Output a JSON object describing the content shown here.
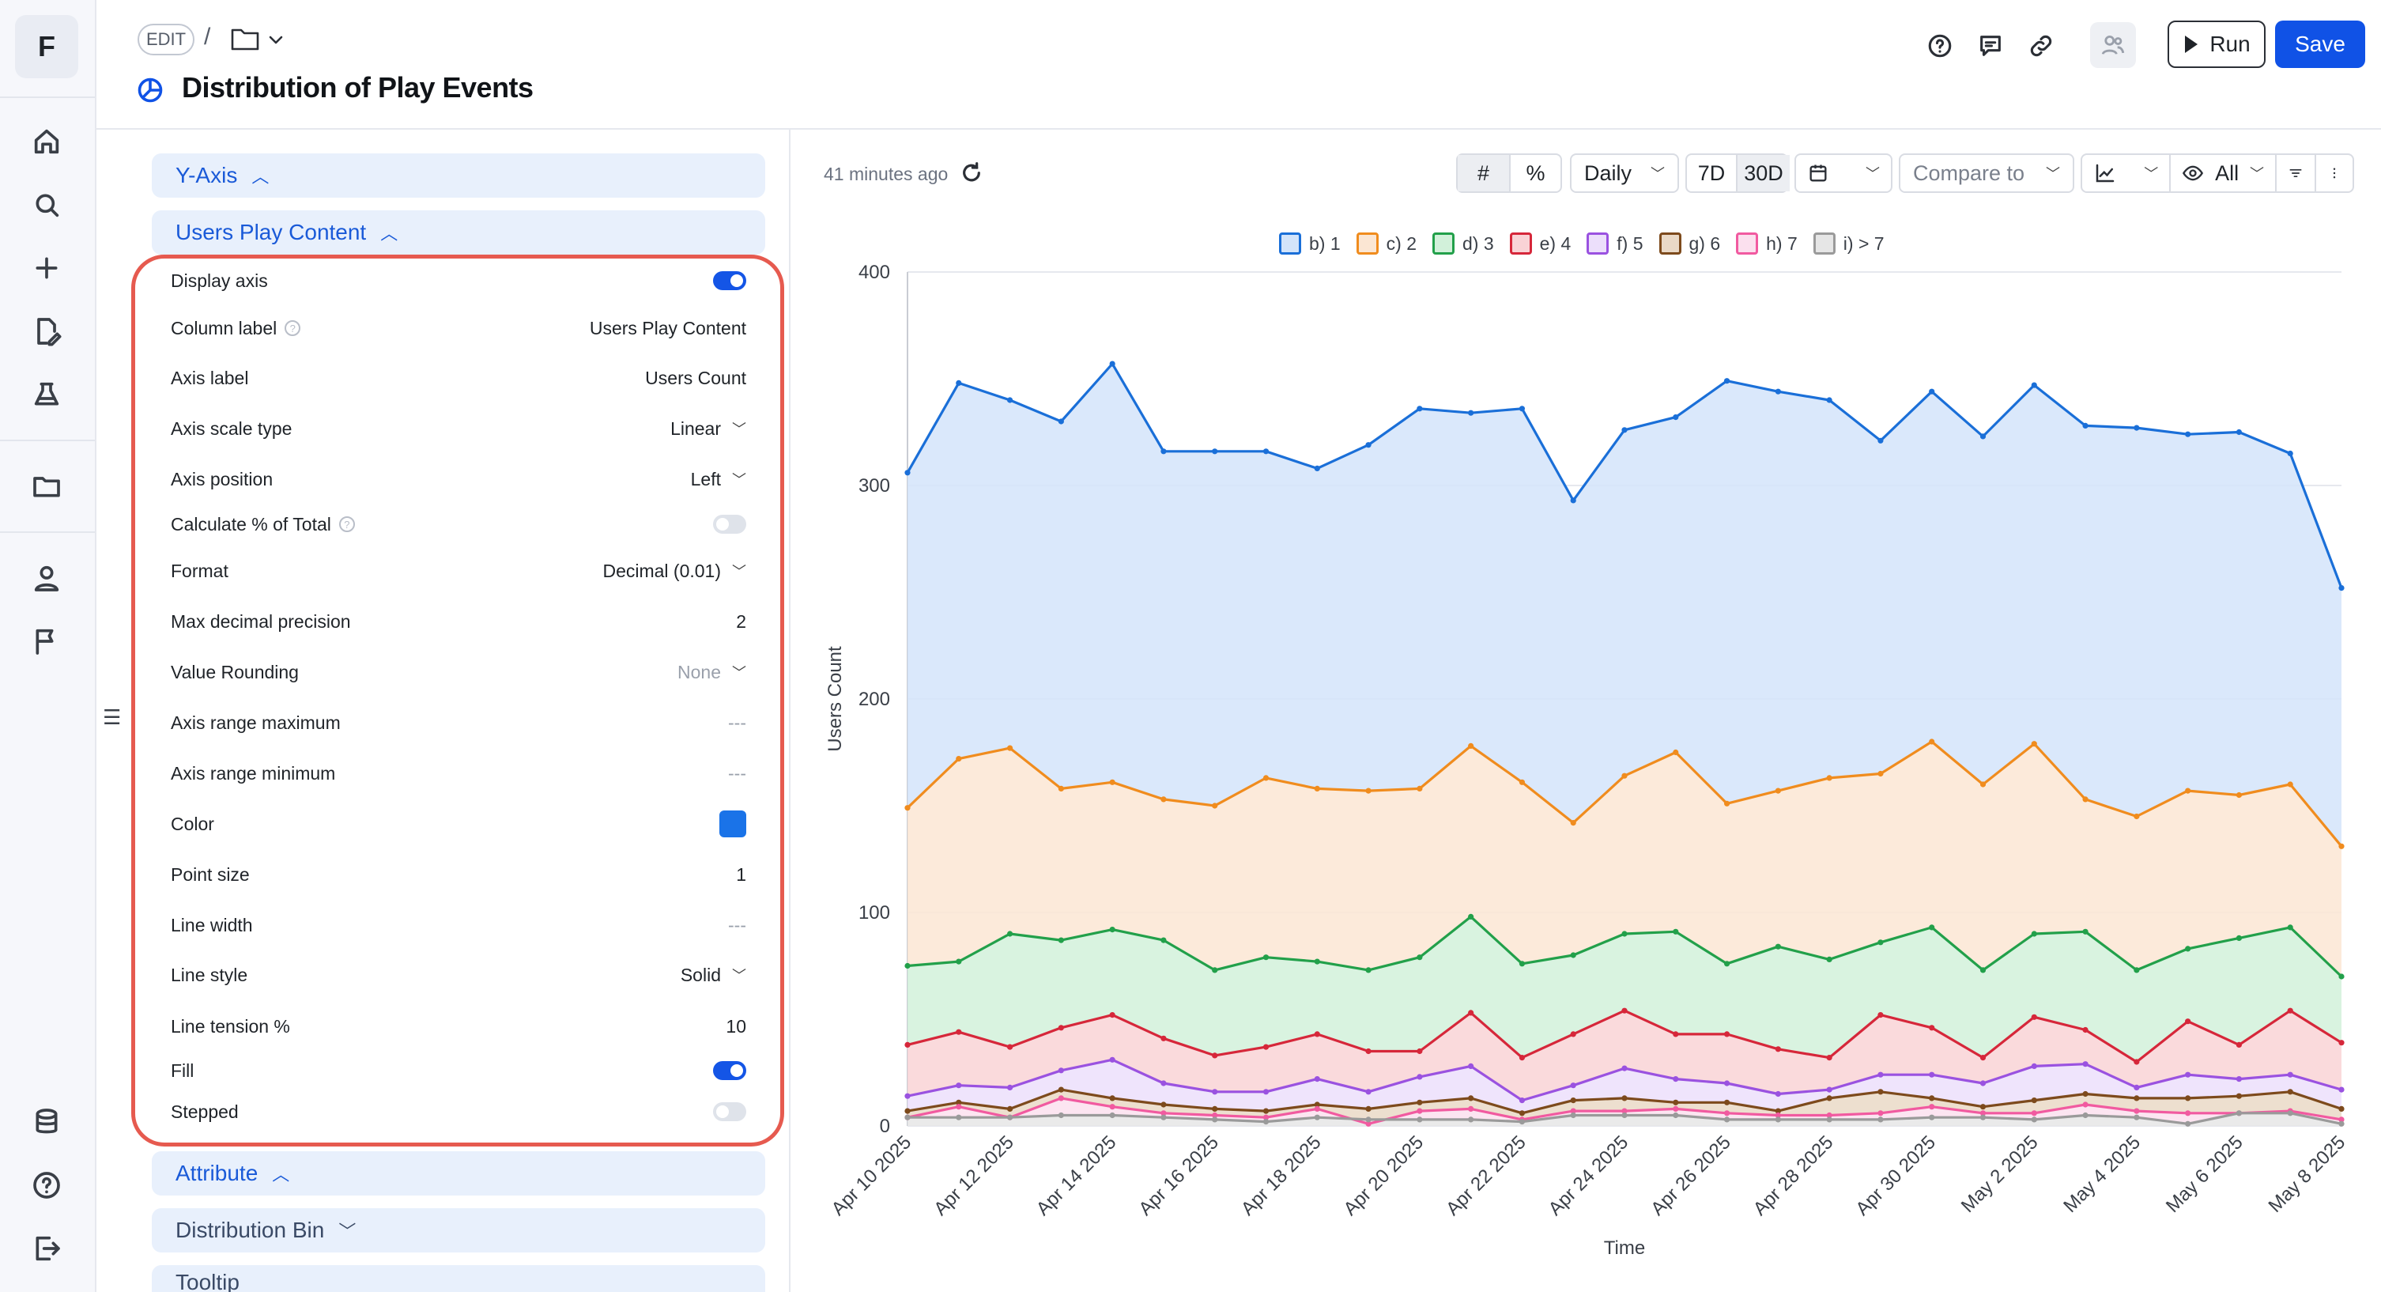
{
  "app": {
    "logo_letter": "F"
  },
  "rail": {
    "items": [
      "home-icon",
      "search-icon",
      "plus-icon",
      "edit-note-icon",
      "lab-flask-icon",
      "folder-icon",
      "user-icon",
      "flag-icon",
      "database-icon",
      "help-icon",
      "logout-icon"
    ]
  },
  "header": {
    "edit_badge": "EDIT",
    "breadcrumb_sep": "/",
    "title": "Distribution of Play Events",
    "run_label": "Run",
    "save_label": "Save"
  },
  "panel": {
    "sections": {
      "y_axis": "Y-Axis",
      "users_play_content": "Users Play Content",
      "attribute": "Attribute",
      "distribution_bin": "Distribution Bin",
      "tooltip": "Tooltip"
    },
    "rows": [
      {
        "label": "Display axis",
        "type": "toggle",
        "on": true
      },
      {
        "label": "Column label",
        "help": true,
        "type": "text",
        "value": "Users Play Content"
      },
      {
        "label": "Axis label",
        "type": "text",
        "value": "Users Count"
      },
      {
        "label": "Axis scale type",
        "type": "select",
        "value": "Linear"
      },
      {
        "label": "Axis position",
        "type": "select",
        "value": "Left"
      },
      {
        "label": "Calculate % of Total",
        "help": true,
        "type": "toggle",
        "on": false
      },
      {
        "label": "Format",
        "type": "select",
        "value": "Decimal (0.01)"
      },
      {
        "label": "Max decimal precision",
        "type": "text",
        "value": "2"
      },
      {
        "label": "Value Rounding",
        "type": "select",
        "value": "None",
        "muted": true
      },
      {
        "label": "Axis range maximum",
        "type": "text",
        "value": "---",
        "muted": true
      },
      {
        "label": "Axis range minimum",
        "type": "text",
        "value": "---",
        "muted": true
      },
      {
        "label": "Color",
        "type": "color",
        "value": "#1a73e8"
      },
      {
        "label": "Point size",
        "type": "text",
        "value": "1"
      },
      {
        "label": "Line width",
        "type": "text",
        "value": "---",
        "muted": true
      },
      {
        "label": "Line style",
        "type": "select",
        "value": "Solid"
      },
      {
        "label": "Line tension %",
        "type": "text",
        "value": "10"
      },
      {
        "label": "Fill",
        "type": "toggle",
        "on": true
      },
      {
        "label": "Stepped",
        "type": "toggle",
        "on": false
      }
    ]
  },
  "toolbar": {
    "updated": "41 minutes ago",
    "interval": "Daily",
    "range_7d": "7D",
    "range_30d": "30D",
    "compare": "Compare to",
    "visibility": "All"
  },
  "colors": {
    "accent": "#1052e6",
    "highlight_box": "#e65a4f"
  },
  "chart_data": {
    "type": "area",
    "xlabel": "Time",
    "ylabel": "Users Count",
    "ylim": [
      0,
      400
    ],
    "yticks": [
      0,
      100,
      200,
      300,
      400
    ],
    "x_tick_labels": [
      "Apr 10 2025",
      "Apr 12 2025",
      "Apr 14 2025",
      "Apr 16 2025",
      "Apr 18 2025",
      "Apr 20 2025",
      "Apr 22 2025",
      "Apr 24 2025",
      "Apr 26 2025",
      "Apr 28 2025",
      "Apr 30 2025",
      "May 2 2025",
      "May 4 2025",
      "May 6 2025",
      "May 8 2025"
    ],
    "legend_position": "top",
    "grid": true,
    "series": [
      {
        "name": "b) 1",
        "color": "#1a6fd8",
        "fill": "#d3e4fa",
        "values": [
          306,
          348,
          340,
          330,
          357,
          316,
          316,
          316,
          308,
          319,
          336,
          334,
          336,
          293,
          326,
          332,
          349,
          344,
          340,
          321,
          344,
          323,
          347,
          328,
          327,
          324,
          325,
          315,
          252
        ]
      },
      {
        "name": "c) 2",
        "color": "#f08c1e",
        "fill": "#fbe6d3",
        "values": [
          149,
          172,
          177,
          158,
          161,
          153,
          150,
          163,
          158,
          157,
          158,
          178,
          161,
          142,
          164,
          175,
          151,
          157,
          163,
          165,
          180,
          160,
          179,
          153,
          145,
          157,
          155,
          160,
          131
        ]
      },
      {
        "name": "d) 3",
        "color": "#22a04a",
        "fill": "#d2f1da",
        "values": [
          75,
          77,
          90,
          87,
          92,
          87,
          73,
          79,
          77,
          73,
          79,
          98,
          76,
          80,
          90,
          91,
          76,
          84,
          78,
          86,
          93,
          73,
          90,
          91,
          73,
          83,
          88,
          93,
          70
        ]
      },
      {
        "name": "e) 4",
        "color": "#d6273a",
        "fill": "#f9d3d6",
        "values": [
          38,
          44,
          37,
          46,
          52,
          41,
          33,
          37,
          43,
          35,
          35,
          53,
          32,
          43,
          54,
          43,
          43,
          36,
          32,
          52,
          46,
          32,
          51,
          45,
          30,
          49,
          38,
          54,
          39
        ]
      },
      {
        "name": "f) 5",
        "color": "#9a52e0",
        "fill": "#ecdffb",
        "values": [
          14,
          19,
          18,
          26,
          31,
          20,
          16,
          16,
          22,
          16,
          23,
          28,
          12,
          19,
          27,
          22,
          20,
          15,
          17,
          24,
          24,
          20,
          28,
          29,
          18,
          24,
          22,
          24,
          17
        ]
      },
      {
        "name": "g) 6",
        "color": "#7d4a1c",
        "fill": "#ead9c7",
        "values": [
          7,
          11,
          8,
          17,
          13,
          10,
          8,
          7,
          10,
          8,
          11,
          13,
          6,
          12,
          13,
          11,
          11,
          7,
          13,
          16,
          13,
          9,
          12,
          15,
          13,
          13,
          14,
          16,
          8
        ]
      },
      {
        "name": "h) 7",
        "color": "#f15aa0",
        "fill": "#fbe0ee",
        "values": [
          4,
          9,
          4,
          13,
          9,
          6,
          5,
          4,
          8,
          1,
          7,
          8,
          3,
          7,
          7,
          8,
          6,
          5,
          5,
          6,
          9,
          6,
          6,
          10,
          7,
          6,
          6,
          7,
          3
        ]
      },
      {
        "name": "i) > 7",
        "color": "#9a9a9a",
        "fill": "#e6e6e6",
        "values": [
          4,
          4,
          4,
          5,
          5,
          4,
          3,
          2,
          4,
          3,
          3,
          3,
          2,
          5,
          5,
          5,
          3,
          3,
          3,
          3,
          4,
          4,
          3,
          5,
          4,
          1,
          6,
          6,
          1
        ]
      }
    ]
  }
}
